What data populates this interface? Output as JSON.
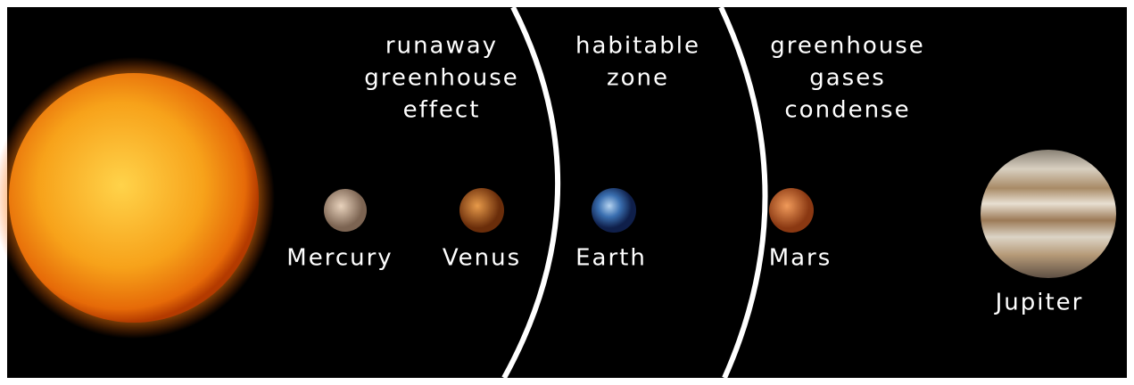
{
  "zones": [
    {
      "lines": [
        "runaway",
        "greenhouse",
        "effect"
      ]
    },
    {
      "lines": [
        "habitable",
        "zone"
      ]
    },
    {
      "lines": [
        "greenhouse",
        "gases",
        "condense"
      ]
    }
  ],
  "planets": [
    {
      "name": "Mercury"
    },
    {
      "name": "Venus"
    },
    {
      "name": "Earth"
    },
    {
      "name": "Mars"
    },
    {
      "name": "Jupiter"
    }
  ]
}
